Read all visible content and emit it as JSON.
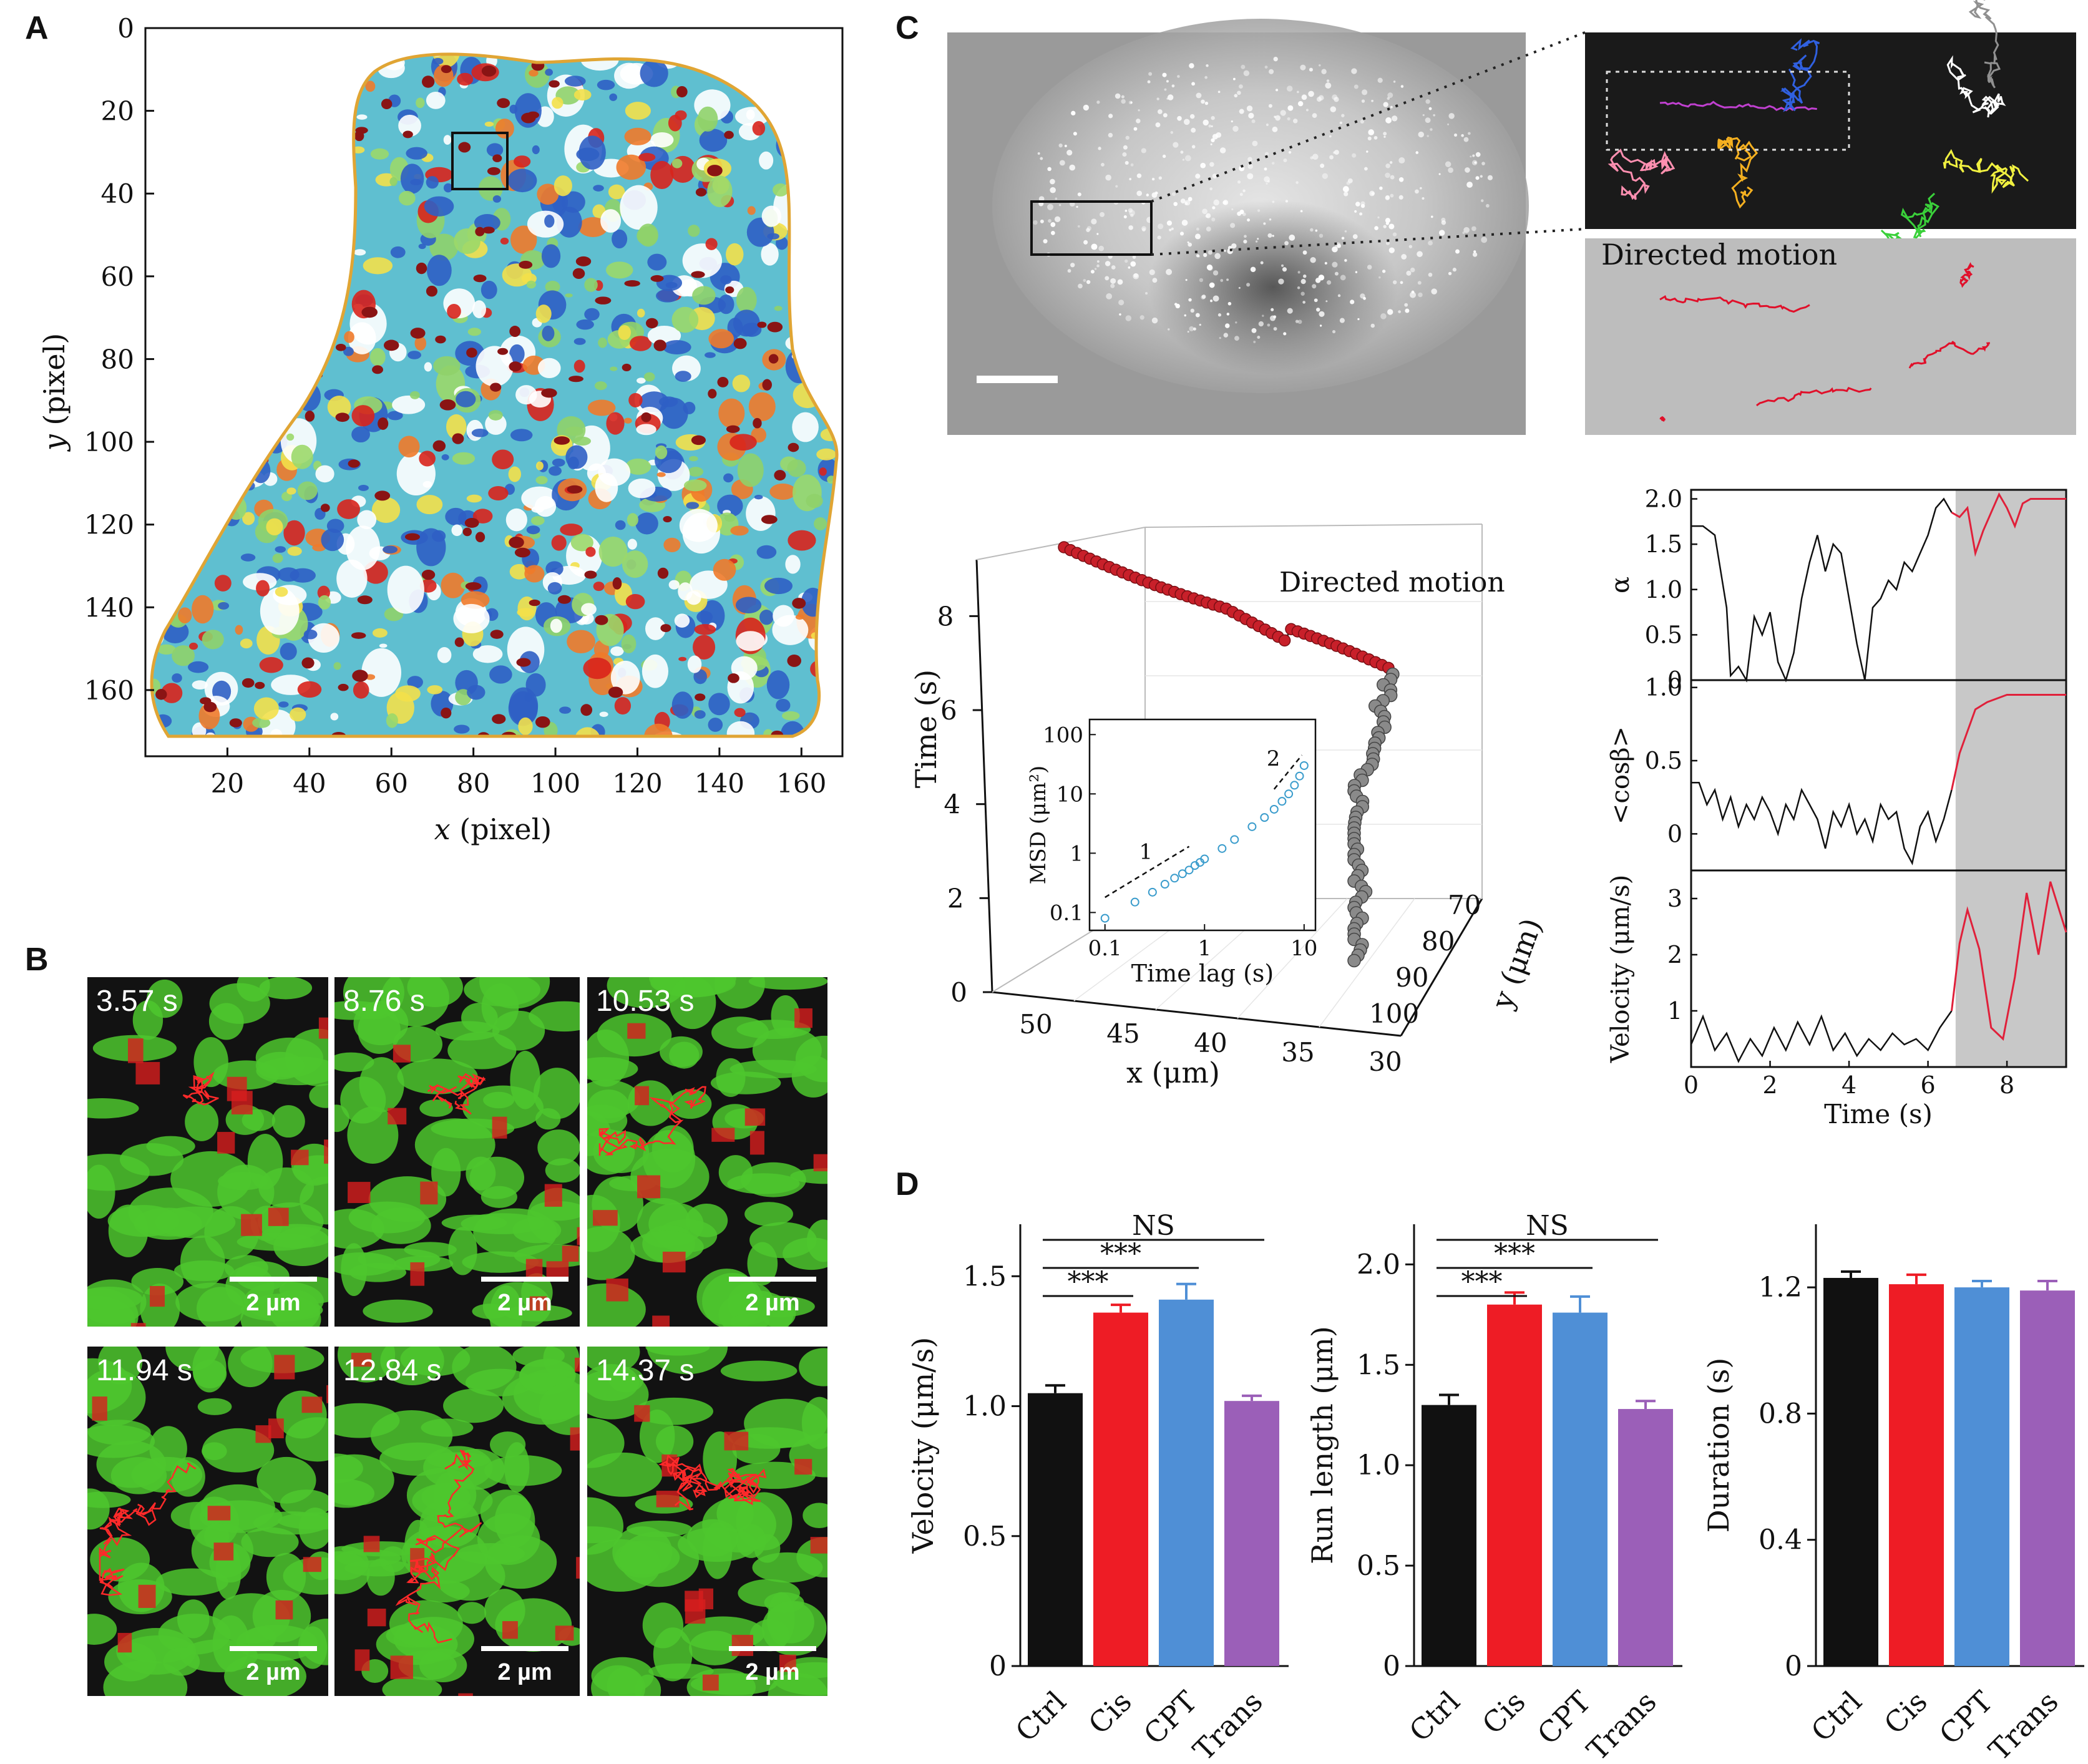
{
  "panels": {
    "A": {
      "letter": "A",
      "xlabel_var": "x",
      "xlabel_unit": " (pixel)",
      "ylabel_var": "y",
      "ylabel_unit": " (pixel)",
      "xticks": [
        "20",
        "40",
        "60",
        "80",
        "100",
        "120",
        "140",
        "160"
      ],
      "yticks": [
        "0",
        "20",
        "40",
        "60",
        "80",
        "100",
        "120",
        "140",
        "160"
      ]
    },
    "B": {
      "letter": "B",
      "frames": [
        {
          "time": "3.57 s",
          "scale": "2 µm"
        },
        {
          "time": "8.76 s",
          "scale": "2 µm"
        },
        {
          "time": "10.53 s",
          "scale": "2 µm"
        },
        {
          "time": "11.94 s",
          "scale": "2 µm"
        },
        {
          "time": "12.84 s",
          "scale": "2 µm"
        },
        {
          "time": "14.37 s",
          "scale": "2 µm"
        }
      ]
    },
    "C": {
      "letter": "C",
      "directed_label": "Directed motion",
      "plot3d": {
        "annotation": "Directed motion",
        "zlabel": "Time (s)",
        "xlabel": "x (μm)",
        "ylabel": "y (μm)",
        "zticks": [
          "0",
          "2",
          "4",
          "6",
          "8"
        ],
        "xticks": [
          "50",
          "45",
          "40",
          "35",
          "30"
        ],
        "yticks": [
          "70",
          "80",
          "90",
          "100"
        ],
        "inset": {
          "xlabel": "Time lag (s)",
          "ylabel": "MSD (μm²)",
          "xticks": [
            "0.1",
            "1",
            "10"
          ],
          "yticks": [
            "0.1",
            "1",
            "10",
            "100"
          ],
          "slope1": "1",
          "slope2": "2"
        }
      },
      "stack": {
        "xlabel": "Time (s)",
        "xticks": [
          "0",
          "2",
          "4",
          "6",
          "8"
        ],
        "alpha_label": "α",
        "alpha_ticks": [
          "0",
          "0.5",
          "1.0",
          "1.5",
          "2.0"
        ],
        "cos_label": "<cosβ>",
        "cos_ticks": [
          "0",
          "0.5",
          "1.0"
        ],
        "vel_label": "Velocity (μm/s)",
        "vel_ticks": [
          "1",
          "2",
          "3"
        ]
      }
    },
    "D": {
      "letter": "D",
      "ns": "NS",
      "stars": "***"
    }
  },
  "colors": {
    "ctrl": "#111111",
    "cis": "#ee1c25",
    "cpt": "#4f8fd6",
    "trans": "#9b5fb8",
    "boundary": "#e6a52a",
    "trajectory": "#e0102a",
    "shade": "#c8c8c8"
  },
  "chart_data": [
    {
      "type": "heatmap",
      "title": "",
      "xlabel": "x (pixel)",
      "ylabel": "y (pixel)",
      "xlim": [
        0,
        170
      ],
      "ylim": [
        176,
        0
      ],
      "grid": false
    },
    {
      "type": "line",
      "title": "",
      "xlabel": "Time (s)",
      "ylabel": "α",
      "xlim": [
        0,
        9.5
      ],
      "ylim": [
        0,
        2.1
      ],
      "x": [
        0,
        0.3,
        0.6,
        0.9,
        1.0,
        1.2,
        1.4,
        1.6,
        1.8,
        2.0,
        2.2,
        2.4,
        2.6,
        2.8,
        3.0,
        3.2,
        3.4,
        3.6,
        3.8,
        4.0,
        4.2,
        4.4,
        4.6,
        4.8,
        5.0,
        5.2,
        5.4,
        5.6,
        5.8,
        6.0,
        6.2,
        6.4,
        6.6,
        6.8,
        7.0,
        7.2,
        7.4,
        7.6,
        7.8,
        8.0,
        8.2,
        8.4,
        8.6,
        9.0,
        9.5
      ],
      "series": [
        {
          "values": [
            1.7,
            1.7,
            1.6,
            0.8,
            0.05,
            0.15,
            0.0,
            0.7,
            0.5,
            0.75,
            0.2,
            0.0,
            0.3,
            0.9,
            1.3,
            1.6,
            1.2,
            1.5,
            1.4,
            0.9,
            0.4,
            0.0,
            0.8,
            0.9,
            1.1,
            1.0,
            1.3,
            1.2,
            1.4,
            1.6,
            1.9,
            2.0,
            1.85,
            1.8,
            1.9,
            1.4,
            1.65,
            1.85,
            2.05,
            1.9,
            1.7,
            1.95,
            2.0,
            2.0,
            2.0
          ]
        }
      ],
      "shaded_from_x": 6.7
    },
    {
      "type": "line",
      "title": "",
      "xlabel": "Time (s)",
      "ylabel": "<cosβ>",
      "xlim": [
        0,
        9.5
      ],
      "ylim": [
        -0.25,
        1.05
      ],
      "x": [
        0,
        0.2,
        0.4,
        0.6,
        0.8,
        1.0,
        1.2,
        1.4,
        1.6,
        1.8,
        2.0,
        2.2,
        2.4,
        2.6,
        2.8,
        3.0,
        3.2,
        3.4,
        3.6,
        3.8,
        4.0,
        4.2,
        4.4,
        4.6,
        4.8,
        5.0,
        5.2,
        5.4,
        5.6,
        5.8,
        6.0,
        6.2,
        6.4,
        6.6,
        6.8,
        7.0,
        7.2,
        7.5,
        8.0,
        8.5,
        9.0,
        9.5
      ],
      "series": [
        {
          "values": [
            0.35,
            0.35,
            0.2,
            0.3,
            0.1,
            0.25,
            0.05,
            0.2,
            0.1,
            0.25,
            0.15,
            0.0,
            0.2,
            0.1,
            0.3,
            0.2,
            0.1,
            -0.1,
            0.15,
            0.05,
            0.2,
            0.0,
            0.1,
            -0.05,
            0.2,
            0.1,
            0.15,
            -0.1,
            -0.2,
            0.05,
            0.15,
            -0.05,
            0.1,
            0.3,
            0.55,
            0.7,
            0.85,
            0.9,
            0.95,
            0.95,
            0.95,
            0.95
          ]
        }
      ],
      "shaded_from_x": 6.7
    },
    {
      "type": "line",
      "title": "",
      "xlabel": "Time (s)",
      "ylabel": "Velocity (μm/s)",
      "xlim": [
        0,
        9.5
      ],
      "ylim": [
        0,
        3.5
      ],
      "x": [
        0,
        0.3,
        0.6,
        0.9,
        1.2,
        1.5,
        1.8,
        2.1,
        2.4,
        2.7,
        3.0,
        3.3,
        3.6,
        3.9,
        4.2,
        4.5,
        4.8,
        5.1,
        5.4,
        5.7,
        6.0,
        6.3,
        6.6,
        6.8,
        7.0,
        7.3,
        7.6,
        7.9,
        8.2,
        8.5,
        8.8,
        9.1,
        9.5
      ],
      "series": [
        {
          "values": [
            0.4,
            0.9,
            0.3,
            0.6,
            0.1,
            0.5,
            0.2,
            0.7,
            0.3,
            0.8,
            0.4,
            0.9,
            0.3,
            0.6,
            0.2,
            0.5,
            0.3,
            0.6,
            0.4,
            0.5,
            0.3,
            0.7,
            1.0,
            2.2,
            2.8,
            2.1,
            0.7,
            0.5,
            1.6,
            3.1,
            2.0,
            3.3,
            2.4
          ]
        }
      ],
      "shaded_from_x": 6.7
    },
    {
      "type": "line",
      "title": "",
      "xlabel": "Time lag (s)",
      "ylabel": "MSD (μm²)",
      "log_x": true,
      "log_y": true,
      "xlim": [
        0.07,
        13
      ],
      "ylim": [
        0.05,
        180
      ],
      "x": [
        0.1,
        0.2,
        0.3,
        0.4,
        0.5,
        0.6,
        0.7,
        0.8,
        0.9,
        1.0,
        1.5,
        2.0,
        3.0,
        4.0,
        5.0,
        6.0,
        7.0,
        8.0,
        9.0,
        10.0
      ],
      "series": [
        {
          "values": [
            0.08,
            0.15,
            0.22,
            0.3,
            0.38,
            0.45,
            0.52,
            0.62,
            0.7,
            0.8,
            1.2,
            1.7,
            2.8,
            4.0,
            5.5,
            7.5,
            10.0,
            14.0,
            20.0,
            30.0
          ]
        }
      ]
    },
    {
      "type": "bar",
      "title": "",
      "ylabel": "Velocity (μm/s)",
      "categories": [
        "Ctrl",
        "Cis",
        "CPT",
        "Trans"
      ],
      "values": [
        1.05,
        1.36,
        1.41,
        1.02
      ],
      "errors": [
        0.03,
        0.03,
        0.06,
        0.02
      ],
      "ylim": [
        0,
        1.7
      ],
      "yticks": [
        "0",
        "0.5",
        "1.0",
        "1.5"
      ],
      "significance": [
        {
          "pair": [
            "Ctrl",
            "Cis"
          ],
          "label": "***"
        },
        {
          "pair": [
            "Ctrl",
            "CPT"
          ],
          "label": "***"
        },
        {
          "pair": [
            "Ctrl",
            "Trans"
          ],
          "label": "NS"
        }
      ]
    },
    {
      "type": "bar",
      "title": "",
      "ylabel": "Run length (μm)",
      "categories": [
        "Ctrl",
        "Cis",
        "CPT",
        "Trans"
      ],
      "values": [
        1.3,
        1.8,
        1.76,
        1.28
      ],
      "errors": [
        0.05,
        0.06,
        0.08,
        0.04
      ],
      "ylim": [
        0,
        2.2
      ],
      "yticks": [
        "0",
        "0.5",
        "1.0",
        "1.5",
        "2.0"
      ],
      "significance": [
        {
          "pair": [
            "Ctrl",
            "Cis"
          ],
          "label": "***"
        },
        {
          "pair": [
            "Ctrl",
            "CPT"
          ],
          "label": "***"
        },
        {
          "pair": [
            "Ctrl",
            "Trans"
          ],
          "label": "NS"
        }
      ]
    },
    {
      "type": "bar",
      "title": "",
      "ylabel": "Duration (s)",
      "categories": [
        "Ctrl",
        "Cis",
        "CPT",
        "Trans"
      ],
      "values": [
        1.23,
        1.21,
        1.2,
        1.19
      ],
      "errors": [
        0.02,
        0.03,
        0.02,
        0.03
      ],
      "ylim": [
        0,
        1.4
      ],
      "yticks": [
        "0",
        "0.4",
        "0.8",
        "1.2"
      ]
    }
  ]
}
